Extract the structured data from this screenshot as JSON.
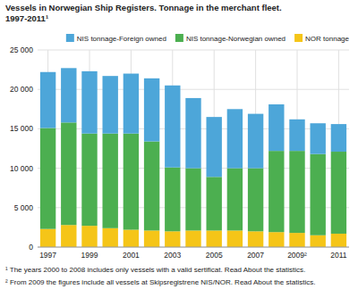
{
  "chart_data": {
    "type": "bar",
    "title": "Vessels in Norwegian Ship Registers. Tonnage in the merchant fleet.",
    "subtitle": "1997-2011¹",
    "categories": [
      "1997",
      null,
      "1999",
      null,
      "2001",
      null,
      "2003",
      null,
      "2005",
      null,
      "2007",
      null,
      "2009²",
      null,
      "2011"
    ],
    "series": [
      {
        "name": "NOR tonnage",
        "color": "#f5c518",
        "values": [
          2300,
          2800,
          2700,
          2400,
          2200,
          2100,
          2000,
          2100,
          2100,
          2100,
          2000,
          1900,
          1800,
          1500,
          1700
        ]
      },
      {
        "name": "NIS tonnage-Norwegian owned",
        "color": "#4caf50",
        "values": [
          12800,
          13000,
          11700,
          12000,
          12200,
          11300,
          8100,
          7900,
          6800,
          7900,
          8000,
          10300,
          10400,
          10300,
          10400
        ]
      },
      {
        "name": "NIS tonnage-Foreign owned",
        "color": "#4da6d9",
        "values": [
          7100,
          6900,
          7900,
          7300,
          7600,
          8000,
          10400,
          8900,
          7600,
          7500,
          6900,
          5900,
          4000,
          3900,
          3500
        ]
      }
    ],
    "stacked": true,
    "ylim": [
      0,
      25000
    ],
    "yticks": [
      0,
      {
        "value": 5000,
        "label": "5 000"
      },
      {
        "value": 10000,
        "label": "10 000"
      },
      {
        "value": 15000,
        "label": "15 000"
      },
      {
        "value": 20000,
        "label": "20 000"
      },
      {
        "value": 25000,
        "label": "25 000"
      }
    ],
    "grid": true,
    "legend": "upper right",
    "annotations": [
      "¹ The years 2000 to 2008 includes only vessels with a valid sertificat. Read About the statistics.",
      "² From 2009 the figures include all vessels at Skipsregistrene NIS/NOR. Read About the statistics."
    ]
  }
}
